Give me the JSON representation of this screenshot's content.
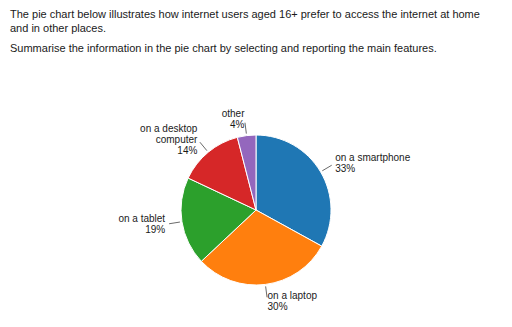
{
  "chart_data": {
    "type": "pie",
    "title": "The pie chart below illustrates how internet users aged 16+ prefer to access the internet at home and in other places.",
    "subtitle": "Summarise the information in the pie chart by selecting and reporting the main features.",
    "categories": [
      "on a smartphone",
      "on a laptop",
      "on a tablet",
      "on a desktop\ncomputer",
      "other"
    ],
    "values": [
      33,
      30,
      19,
      14,
      4
    ],
    "value_labels": [
      "33%",
      "30%",
      "19%",
      "14%",
      "4%"
    ],
    "data_labels": true
  }
}
